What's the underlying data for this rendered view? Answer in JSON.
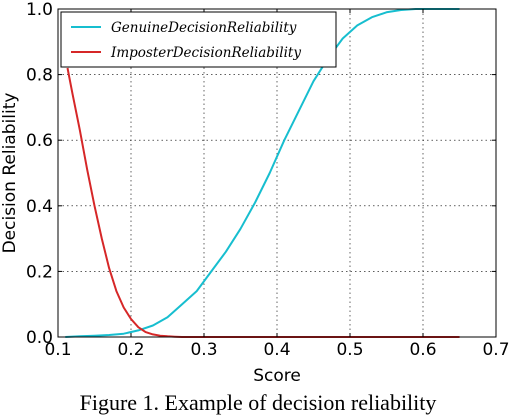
{
  "caption": "Figure 1. Example of decision reliability",
  "chart_data": {
    "type": "line",
    "title": "",
    "xlabel": "Score",
    "ylabel": "Decision Reliability",
    "xlim": [
      0.1,
      0.7
    ],
    "ylim": [
      0.0,
      1.0
    ],
    "xticks": [
      "0.1",
      "0.2",
      "0.3",
      "0.4",
      "0.5",
      "0.6",
      "0.7"
    ],
    "yticks": [
      "0.0",
      "0.2",
      "0.4",
      "0.6",
      "0.8",
      "1.0"
    ],
    "grid": true,
    "legend_position": "top-left",
    "series": [
      {
        "name": "GenuineDecisionReliability",
        "color": "#17becf",
        "x": [
          0.11,
          0.13,
          0.15,
          0.17,
          0.19,
          0.21,
          0.23,
          0.25,
          0.27,
          0.29,
          0.31,
          0.33,
          0.35,
          0.37,
          0.39,
          0.41,
          0.43,
          0.45,
          0.47,
          0.49,
          0.51,
          0.53,
          0.55,
          0.57,
          0.59,
          0.61,
          0.63,
          0.65
        ],
        "y": [
          0.0,
          0.002,
          0.004,
          0.006,
          0.01,
          0.02,
          0.035,
          0.06,
          0.1,
          0.14,
          0.2,
          0.26,
          0.33,
          0.41,
          0.5,
          0.6,
          0.69,
          0.78,
          0.85,
          0.91,
          0.95,
          0.975,
          0.99,
          0.997,
          1.0,
          1.0,
          1.0,
          1.0
        ]
      },
      {
        "name": "ImposterDecisionReliability",
        "color": "#d62728",
        "x": [
          0.113,
          0.12,
          0.13,
          0.14,
          0.15,
          0.16,
          0.17,
          0.18,
          0.19,
          0.2,
          0.21,
          0.22,
          0.23,
          0.24,
          0.25,
          0.26,
          0.27,
          0.3,
          0.4,
          0.5,
          0.6,
          0.65
        ],
        "y": [
          0.82,
          0.74,
          0.63,
          0.51,
          0.4,
          0.3,
          0.21,
          0.14,
          0.09,
          0.055,
          0.03,
          0.015,
          0.008,
          0.004,
          0.002,
          0.001,
          0.0,
          0.0,
          0.0,
          0.0,
          0.0,
          0.0
        ]
      }
    ]
  }
}
